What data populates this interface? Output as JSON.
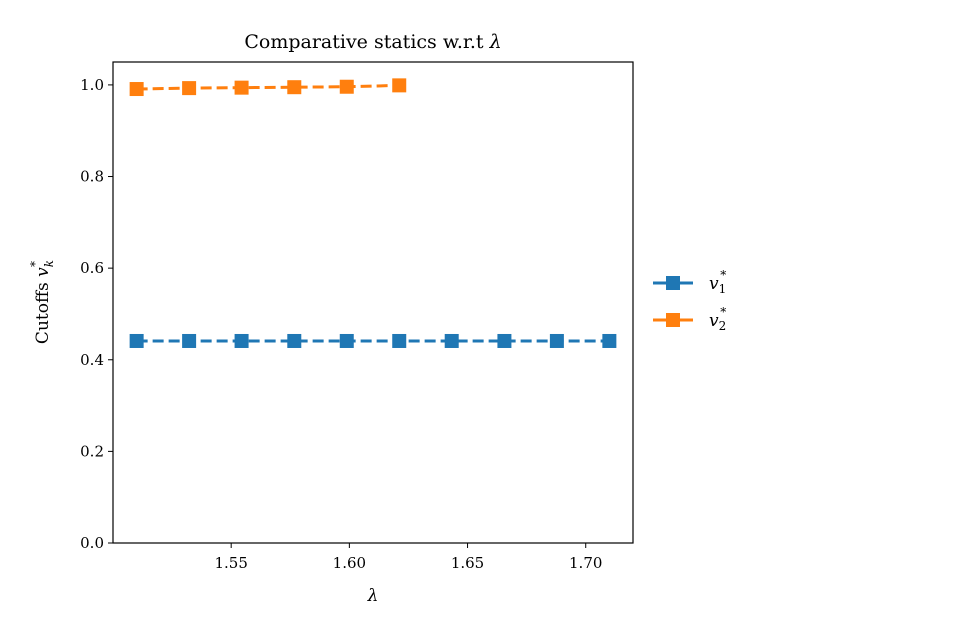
{
  "chart_data": {
    "type": "line",
    "title": "Comparative statics w.r.t λ",
    "title_prefix": "Comparative statics w.r.t ",
    "title_symbol": "λ",
    "xlabel": "λ",
    "ylabel_prefix": "Cutoffs ",
    "ylabel_var": "v",
    "ylabel_sub": "k",
    "ylabel_sup": "*",
    "xlim": [
      1.5,
      1.72
    ],
    "ylim": [
      0.0,
      1.05
    ],
    "xticks": [
      1.55,
      1.6,
      1.65,
      1.7
    ],
    "xtick_labels": [
      "1.55",
      "1.60",
      "1.65",
      "1.70"
    ],
    "yticks": [
      0.0,
      0.2,
      0.4,
      0.6,
      0.8,
      1.0
    ],
    "ytick_labels": [
      "0.0",
      "0.2",
      "0.4",
      "0.6",
      "0.8",
      "1.0"
    ],
    "grid": false,
    "legend_placement": "outside-right",
    "series": [
      {
        "name": "v1*",
        "var": "v",
        "sub": "1",
        "sup": "*",
        "color": "#1f77b4",
        "marker": "square",
        "linestyle": "dashed",
        "x": [
          1.51,
          1.5322,
          1.5544,
          1.5767,
          1.5989,
          1.6211,
          1.6433,
          1.6656,
          1.6878,
          1.71
        ],
        "y": [
          0.441,
          0.441,
          0.441,
          0.441,
          0.441,
          0.441,
          0.441,
          0.441,
          0.441,
          0.441
        ]
      },
      {
        "name": "v2*",
        "var": "v",
        "sub": "2",
        "sup": "*",
        "color": "#ff7f0e",
        "marker": "square",
        "linestyle": "dashed",
        "x": [
          1.51,
          1.5322,
          1.5544,
          1.5767,
          1.5989,
          1.6211
        ],
        "y": [
          0.991,
          0.993,
          0.994,
          0.995,
          0.996,
          0.999
        ]
      }
    ]
  }
}
